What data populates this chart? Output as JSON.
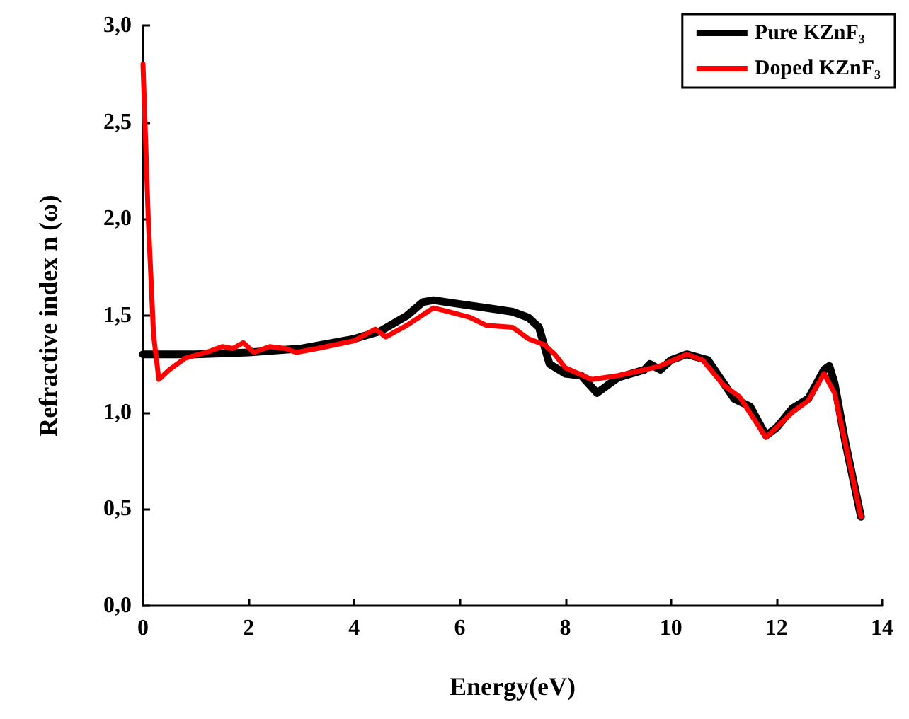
{
  "chart_data": {
    "type": "line",
    "xlabel": "Energy(eV)",
    "ylabel": "Refractive index n (ω)",
    "xlim": [
      0,
      14
    ],
    "xticks": [
      0,
      2,
      4,
      6,
      8,
      10,
      12,
      14
    ],
    "ylim": [
      0,
      3
    ],
    "yticks": [
      {
        "value": 0,
        "label": "0,0"
      },
      {
        "value": 0.5,
        "label": "0,5"
      },
      {
        "value": 1,
        "label": "1,0"
      },
      {
        "value": 1.5,
        "label": "1,5"
      },
      {
        "value": 2,
        "label": "2,0"
      },
      {
        "value": 2.5,
        "label": "2,5"
      },
      {
        "value": 3,
        "label": "3,0"
      }
    ],
    "grid": false,
    "legend": "top right",
    "marker": "none",
    "line_style": "solid",
    "series": [
      {
        "name": "Pure KZnF₃",
        "color": "#000000",
        "x": [
          0,
          1,
          2,
          3,
          4,
          4.5,
          5,
          5.3,
          5.5,
          6,
          6.5,
          7,
          7.3,
          7.5,
          7.7,
          8,
          8.3,
          8.5,
          8.6,
          8.8,
          9,
          9.5,
          9.6,
          9.8,
          10,
          10.3,
          10.7,
          11,
          11.2,
          11.5,
          11.8,
          12,
          12.3,
          12.6,
          12.9,
          13,
          13.1,
          13.3,
          13.6
        ],
        "values": [
          1.3,
          1.3,
          1.31,
          1.33,
          1.38,
          1.42,
          1.5,
          1.57,
          1.58,
          1.56,
          1.54,
          1.52,
          1.49,
          1.44,
          1.25,
          1.2,
          1.19,
          1.13,
          1.1,
          1.14,
          1.18,
          1.22,
          1.25,
          1.22,
          1.27,
          1.3,
          1.27,
          1.15,
          1.07,
          1.03,
          0.88,
          0.92,
          1.02,
          1.07,
          1.22,
          1.24,
          1.15,
          0.85,
          0.46
        ]
      },
      {
        "name": "Doped KZnF₃",
        "color": "#ff0000",
        "x": [
          0,
          0.1,
          0.2,
          0.3,
          0.5,
          0.8,
          1.2,
          1.5,
          1.7,
          1.9,
          2.1,
          2.4,
          2.7,
          2.9,
          3.3,
          4,
          4.4,
          4.6,
          5,
          5.5,
          5.8,
          6.2,
          6.5,
          7,
          7.3,
          7.6,
          7.8,
          8,
          8.5,
          9,
          9.5,
          9.8,
          10.3,
          10.6,
          11,
          11.3,
          11.8,
          12.3,
          12.6,
          12.9,
          13.1,
          13.6
        ],
        "values": [
          2.8,
          2,
          1.4,
          1.17,
          1.22,
          1.28,
          1.31,
          1.34,
          1.33,
          1.36,
          1.31,
          1.34,
          1.33,
          1.31,
          1.33,
          1.37,
          1.43,
          1.39,
          1.45,
          1.54,
          1.52,
          1.49,
          1.45,
          1.44,
          1.38,
          1.35,
          1.3,
          1.23,
          1.17,
          1.19,
          1.22,
          1.24,
          1.3,
          1.27,
          1.14,
          1.08,
          0.87,
          1,
          1.06,
          1.2,
          1.1,
          0.46
        ]
      }
    ]
  }
}
